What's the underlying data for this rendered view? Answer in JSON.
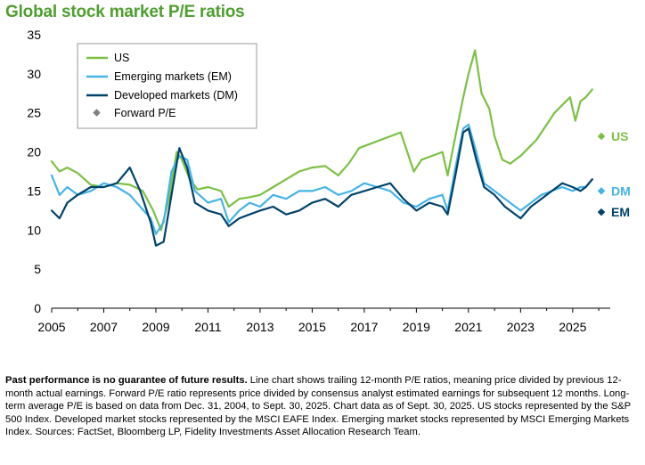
{
  "title": "Global stock market P/E ratios",
  "footnote": {
    "bold": "Past performance is no guarantee of future results.",
    "text": " Line chart shows trailing 12-month P/E ratios, meaning price divided by previous 12-month actual earnings. Forward P/E ratio represents price divided by consensus analyst estimated earnings for subsequent 12 months. Long-term average P/E is based on data from Dec. 31, 2004, to Sept. 30, 2025. Chart data as of Sept. 30, 2025. US stocks represented by the S&P 500 Index. Developed market stocks represented by the MSCI EAFE Index. Emerging market stocks represented by MSCI Emerging Markets Index. Sources: FactSet, Bloomberg LP, Fidelity Investments Asset Allocation Research Team."
  },
  "chart_data": {
    "type": "line",
    "title": "Global stock market P/E ratios",
    "xlabel": "",
    "ylabel": "",
    "xlim": [
      2005,
      2026.1
    ],
    "ylim": [
      0,
      35
    ],
    "x_ticks": [
      "2005",
      "2007",
      "2009",
      "2011",
      "2013",
      "2015",
      "2017",
      "2019",
      "2021",
      "2023",
      "2025"
    ],
    "y_ticks": [
      "0",
      "5",
      "10",
      "15",
      "20",
      "25",
      "30",
      "35"
    ],
    "grid": false,
    "legend_position": "top-left",
    "legend": [
      "US",
      "Emerging markets (EM)",
      "Developed markets (DM)",
      "Forward P/E"
    ],
    "series": [
      {
        "name": "US",
        "color": "#7ac143",
        "x": [
          2005,
          2005.3,
          2005.6,
          2006.0,
          2006.5,
          2007.0,
          2007.5,
          2008.0,
          2008.5,
          2008.9,
          2009.2,
          2009.5,
          2009.8,
          2010.0,
          2010.3,
          2010.6,
          2011.0,
          2011.5,
          2011.8,
          2012.2,
          2012.6,
          2013.0,
          2013.5,
          2014.0,
          2014.5,
          2015.0,
          2015.5,
          2016.0,
          2016.4,
          2016.8,
          2017.2,
          2017.6,
          2018.0,
          2018.4,
          2018.9,
          2019.2,
          2019.6,
          2020.0,
          2020.2,
          2020.5,
          2020.8,
          2021.0,
          2021.25,
          2021.5,
          2021.8,
          2022.0,
          2022.3,
          2022.6,
          2022.8,
          2023.0,
          2023.3,
          2023.6,
          2024.0,
          2024.3,
          2024.6,
          2024.9,
          2025.1,
          2025.3,
          2025.5,
          2025.75
        ],
        "values": [
          18.8,
          17.5,
          18.0,
          17.3,
          15.8,
          15.5,
          16.0,
          15.8,
          15.0,
          12.5,
          10.0,
          14.0,
          20.0,
          19.0,
          16.5,
          15.2,
          15.5,
          15.0,
          13.0,
          14.0,
          14.2,
          14.5,
          15.5,
          16.5,
          17.5,
          18.0,
          18.2,
          17.0,
          18.5,
          20.5,
          21.0,
          21.5,
          22.0,
          22.5,
          17.5,
          19.0,
          19.5,
          20.0,
          17.0,
          22.0,
          27.0,
          30.0,
          33.0,
          27.5,
          25.5,
          22.0,
          19.0,
          18.5,
          19.0,
          19.5,
          20.5,
          21.5,
          23.5,
          25.0,
          26.0,
          27.0,
          24.0,
          26.5,
          27.0,
          28.0
        ]
      },
      {
        "name": "Emerging markets (EM)",
        "color": "#45b3e7",
        "x": [
          2005,
          2005.3,
          2005.6,
          2006.0,
          2006.5,
          2007.0,
          2007.5,
          2008.0,
          2008.4,
          2008.8,
          2009.0,
          2009.3,
          2009.6,
          2009.9,
          2010.2,
          2010.5,
          2011.0,
          2011.5,
          2011.8,
          2012.2,
          2012.6,
          2013.0,
          2013.5,
          2014.0,
          2014.5,
          2015.0,
          2015.5,
          2016.0,
          2016.5,
          2017.0,
          2017.5,
          2018.0,
          2018.5,
          2019.0,
          2019.5,
          2020.0,
          2020.2,
          2020.5,
          2020.8,
          2021.0,
          2021.3,
          2021.6,
          2022.0,
          2022.4,
          2022.8,
          2023.0,
          2023.4,
          2023.8,
          2024.2,
          2024.6,
          2025.0,
          2025.3,
          2025.5,
          2025.75
        ],
        "values": [
          17.0,
          14.5,
          15.5,
          14.5,
          15.0,
          16.0,
          15.5,
          14.5,
          13.0,
          11.5,
          9.5,
          11.0,
          17.5,
          19.5,
          19.0,
          15.0,
          13.5,
          14.0,
          11.0,
          12.5,
          13.5,
          13.0,
          14.5,
          14.0,
          15.0,
          15.0,
          15.5,
          14.5,
          15.0,
          16.0,
          15.5,
          15.0,
          13.5,
          13.0,
          14.0,
          14.5,
          12.5,
          18.0,
          23.0,
          23.5,
          20.0,
          16.0,
          15.0,
          14.0,
          13.0,
          12.5,
          13.5,
          14.5,
          15.0,
          15.5,
          15.0,
          15.5,
          15.5,
          16.5
        ]
      },
      {
        "name": "Developed markets (DM)",
        "color": "#00426b",
        "x": [
          2005,
          2005.3,
          2005.6,
          2006.0,
          2006.5,
          2007.0,
          2007.5,
          2008.0,
          2008.4,
          2008.8,
          2009.0,
          2009.3,
          2009.6,
          2009.9,
          2010.2,
          2010.5,
          2011.0,
          2011.5,
          2011.8,
          2012.2,
          2012.6,
          2013.0,
          2013.5,
          2014.0,
          2014.5,
          2015.0,
          2015.5,
          2016.0,
          2016.5,
          2017.0,
          2017.5,
          2018.0,
          2018.5,
          2019.0,
          2019.5,
          2020.0,
          2020.2,
          2020.5,
          2020.8,
          2021.0,
          2021.3,
          2021.6,
          2022.0,
          2022.4,
          2022.8,
          2023.0,
          2023.4,
          2023.8,
          2024.2,
          2024.6,
          2025.0,
          2025.3,
          2025.5,
          2025.75
        ],
        "values": [
          12.5,
          11.5,
          13.5,
          14.5,
          15.5,
          15.5,
          16.0,
          18.0,
          15.0,
          11.0,
          8.0,
          8.5,
          14.5,
          20.5,
          18.0,
          13.5,
          12.5,
          12.0,
          10.5,
          11.5,
          12.0,
          12.5,
          13.0,
          12.0,
          12.5,
          13.5,
          14.0,
          13.0,
          14.5,
          15.0,
          15.5,
          16.0,
          14.0,
          12.5,
          13.5,
          13.0,
          12.0,
          17.0,
          22.5,
          23.0,
          19.0,
          15.5,
          14.5,
          13.0,
          12.0,
          11.5,
          13.0,
          14.0,
          15.0,
          16.0,
          15.5,
          15.0,
          15.5,
          16.5
        ]
      }
    ],
    "forward_pe": [
      {
        "label": "US",
        "value": 22.0,
        "color": "#7ac143"
      },
      {
        "label": "DM",
        "value": 15.0,
        "color": "#45b3e7"
      },
      {
        "label": "EM",
        "value": 12.3,
        "color": "#00426b"
      }
    ],
    "forward_marker_color": "#808080"
  }
}
